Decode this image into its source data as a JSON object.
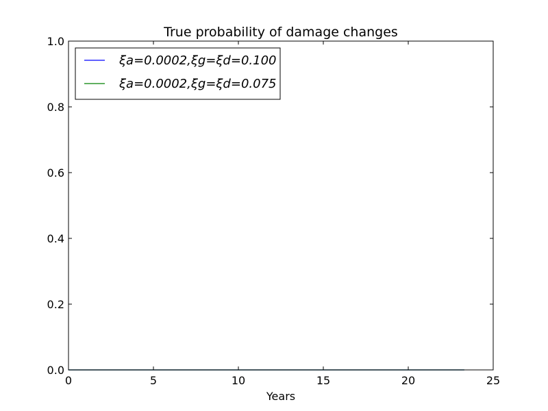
{
  "chart_data": {
    "type": "line",
    "title": "True probability of damage changes",
    "xlabel": "Years",
    "ylabel": "",
    "xlim": [
      0,
      25
    ],
    "ylim": [
      0.0,
      1.0
    ],
    "x_ticks": [
      0,
      5,
      10,
      15,
      20,
      25
    ],
    "x_tick_labels": [
      "0",
      "5",
      "10",
      "15",
      "20",
      "25"
    ],
    "y_ticks": [
      0.0,
      0.2,
      0.4,
      0.6,
      0.8,
      1.0
    ],
    "y_tick_labels": [
      "0.0",
      "0.2",
      "0.4",
      "0.6",
      "0.8",
      "1.0"
    ],
    "grid": false,
    "legend_position": "top-left",
    "series": [
      {
        "name": "ξa=0.0002,ξg=ξd=0.100",
        "color": "#0000ff",
        "x": [
          0,
          23.3
        ],
        "y": [
          0.0,
          0.0
        ]
      },
      {
        "name": "ξa=0.0002,ξg=ξd=0.075",
        "color": "#008000",
        "x": [
          0,
          23.3
        ],
        "y": [
          0.0,
          0.0
        ]
      }
    ]
  }
}
